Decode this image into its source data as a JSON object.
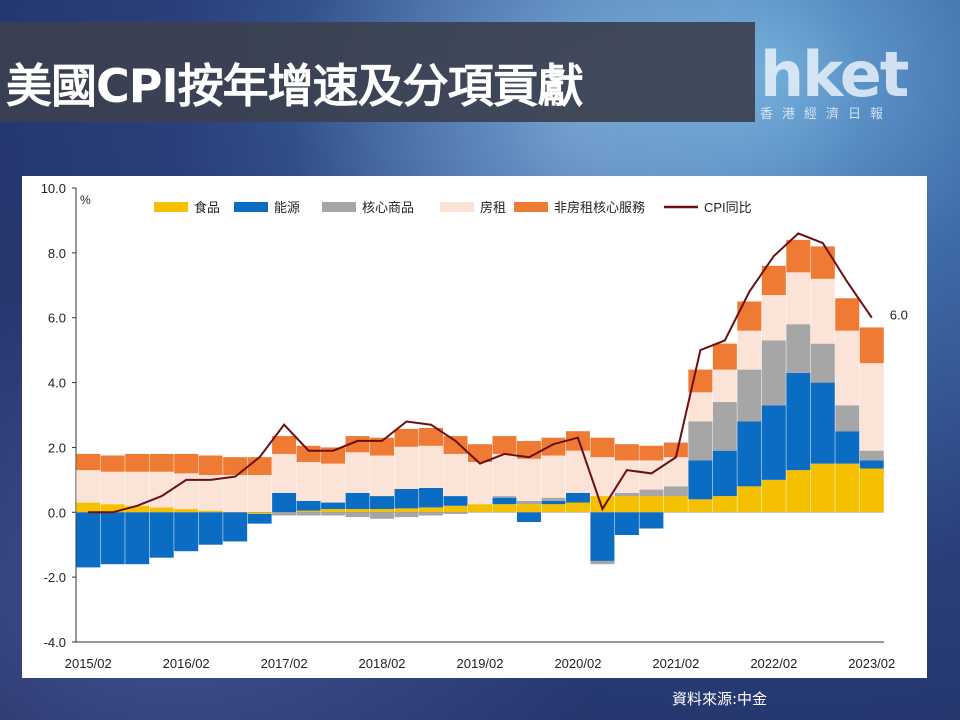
{
  "header": {
    "title": "美國CPI按年增速及分項貢獻",
    "logo_text": "hket",
    "logo_subtitle": "香港經濟日報"
  },
  "source": "資料來源:中金",
  "colors": {
    "food": "#f5c000",
    "energy": "#0b6cc4",
    "core_goods": "#a6a6a6",
    "rent": "#fbe3d8",
    "services": "#ee7a33",
    "cpi": "#6b0f12"
  },
  "chart_data": {
    "type": "bar",
    "stacked": true,
    "ylabel": "%",
    "ylim": [
      -4,
      10
    ],
    "yticks": [
      -4,
      -2,
      0,
      2,
      4,
      6,
      8,
      10
    ],
    "ytick_labels": [
      "-4.0",
      "-2.0",
      "0.0",
      "2.0",
      "4.0",
      "6.0",
      "8.0",
      "10.0"
    ],
    "x_tick_labels": [
      "2015/02",
      "2016/02",
      "2017/02",
      "2018/02",
      "2019/02",
      "2020/02",
      "2021/02",
      "2022/02",
      "2023/02"
    ],
    "legend_position": "top",
    "annotation": "6.0",
    "grid": false,
    "x": [
      "2015/02",
      "2015/05",
      "2015/08",
      "2015/11",
      "2016/02",
      "2016/05",
      "2016/08",
      "2016/11",
      "2017/02",
      "2017/05",
      "2017/08",
      "2017/11",
      "2018/02",
      "2018/05",
      "2018/08",
      "2018/11",
      "2019/02",
      "2019/05",
      "2019/08",
      "2019/11",
      "2020/02",
      "2020/05",
      "2020/08",
      "2020/11",
      "2021/02",
      "2021/05",
      "2021/08",
      "2021/11",
      "2022/02",
      "2022/05",
      "2022/08",
      "2022/11",
      "2023/02"
    ],
    "series": [
      {
        "name": "食品",
        "color": "#f5c000",
        "values": [
          0.3,
          0.25,
          0.2,
          0.15,
          0.1,
          0.05,
          0.0,
          -0.05,
          0.0,
          0.05,
          0.1,
          0.1,
          0.1,
          0.12,
          0.15,
          0.2,
          0.25,
          0.25,
          0.25,
          0.25,
          0.3,
          0.5,
          0.5,
          0.5,
          0.5,
          0.4,
          0.5,
          0.8,
          1.0,
          1.3,
          1.5,
          1.5,
          1.35
        ]
      },
      {
        "name": "能源",
        "color": "#0b6cc4",
        "values": [
          -1.7,
          -1.6,
          -1.6,
          -1.4,
          -1.2,
          -1.0,
          -0.9,
          -0.3,
          0.6,
          0.3,
          0.2,
          0.5,
          0.4,
          0.6,
          0.6,
          0.3,
          0.0,
          0.2,
          -0.3,
          0.1,
          0.3,
          -1.5,
          -0.7,
          -0.5,
          0.0,
          1.2,
          1.4,
          2.0,
          2.3,
          3.0,
          2.5,
          1.0,
          0.25
        ]
      },
      {
        "name": "核心商品",
        "color": "#a6a6a6",
        "values": [
          0.0,
          0.0,
          0.0,
          0.0,
          0.0,
          0.0,
          0.0,
          0.0,
          -0.1,
          -0.1,
          -0.1,
          -0.15,
          -0.2,
          -0.15,
          -0.1,
          -0.05,
          0.0,
          0.05,
          0.1,
          0.1,
          0.0,
          -0.1,
          0.1,
          0.2,
          0.3,
          1.2,
          1.5,
          1.6,
          2.0,
          1.5,
          1.2,
          0.8,
          0.3
        ]
      },
      {
        "name": "房租",
        "color": "#fbe3d8",
        "values": [
          1.0,
          1.0,
          1.05,
          1.1,
          1.1,
          1.1,
          1.15,
          1.15,
          1.2,
          1.2,
          1.2,
          1.25,
          1.25,
          1.3,
          1.3,
          1.3,
          1.3,
          1.3,
          1.3,
          1.3,
          1.3,
          1.2,
          1.0,
          0.9,
          0.9,
          0.9,
          1.0,
          1.2,
          1.4,
          1.6,
          2.0,
          2.3,
          2.7
        ]
      },
      {
        "name": "非房租核心服務",
        "color": "#ee7a33",
        "values": [
          0.5,
          0.5,
          0.55,
          0.55,
          0.6,
          0.6,
          0.55,
          0.55,
          0.55,
          0.5,
          0.5,
          0.5,
          0.55,
          0.55,
          0.55,
          0.55,
          0.55,
          0.55,
          0.55,
          0.55,
          0.6,
          0.6,
          0.5,
          0.45,
          0.45,
          0.7,
          0.8,
          0.9,
          0.9,
          1.0,
          1.0,
          1.0,
          1.1
        ]
      }
    ],
    "line": {
      "name": "CPI同比",
      "color": "#6b0f12",
      "values": [
        0.0,
        0.0,
        0.2,
        0.5,
        1.0,
        1.0,
        1.1,
        1.7,
        2.7,
        1.9,
        1.9,
        2.2,
        2.2,
        2.8,
        2.7,
        2.2,
        1.5,
        1.8,
        1.7,
        2.1,
        2.3,
        0.1,
        1.3,
        1.2,
        1.7,
        5.0,
        5.3,
        6.8,
        7.9,
        8.6,
        8.3,
        7.1,
        6.0
      ]
    }
  }
}
